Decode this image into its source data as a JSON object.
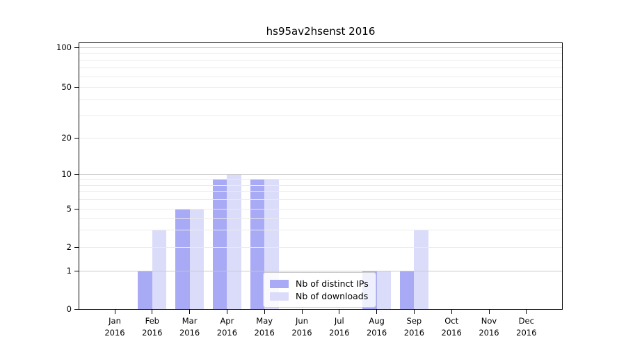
{
  "chart_data": {
    "type": "bar",
    "title": "hs95av2hsenst 2016",
    "categories": [
      "Jan 2016",
      "Feb 2016",
      "Mar 2016",
      "Apr 2016",
      "May 2016",
      "Jun 2016",
      "Jul 2016",
      "Aug 2016",
      "Sep 2016",
      "Oct 2016",
      "Nov 2016",
      "Dec 2016"
    ],
    "month_labels": [
      "Jan",
      "Feb",
      "Mar",
      "Apr",
      "May",
      "Jun",
      "Jul",
      "Aug",
      "Sep",
      "Oct",
      "Nov",
      "Dec"
    ],
    "year_label": "2016",
    "series": [
      {
        "name": "Nb of distinct IPs",
        "color": "#a8aaf6",
        "values": [
          0,
          1,
          5,
          9,
          9,
          0,
          0,
          1,
          1,
          0,
          0,
          0
        ]
      },
      {
        "name": "Nb of downloads",
        "color": "#dbdcfa",
        "values": [
          0,
          3,
          5,
          10,
          9,
          0,
          0,
          1,
          3,
          0,
          0,
          0
        ]
      }
    ],
    "yscale": "log (linear 0-1 segment)",
    "ylim": [
      0,
      100
    ],
    "ytick_values": [
      0,
      1,
      2,
      5,
      10,
      20,
      50,
      100
    ],
    "minor_grid_values": [
      2,
      3,
      4,
      5,
      6,
      7,
      8,
      9,
      20,
      30,
      40,
      50,
      60,
      70,
      80,
      90
    ],
    "major_grid_values": [
      1,
      10,
      100
    ],
    "grid": true,
    "legend_position": "lower center-right inside plot"
  },
  "colors": {
    "background": "#ffffff",
    "axis": "#000000",
    "major_grid": "#c8c8c8",
    "minor_grid": "#ebebeb",
    "legend_border": "#cccccc"
  }
}
